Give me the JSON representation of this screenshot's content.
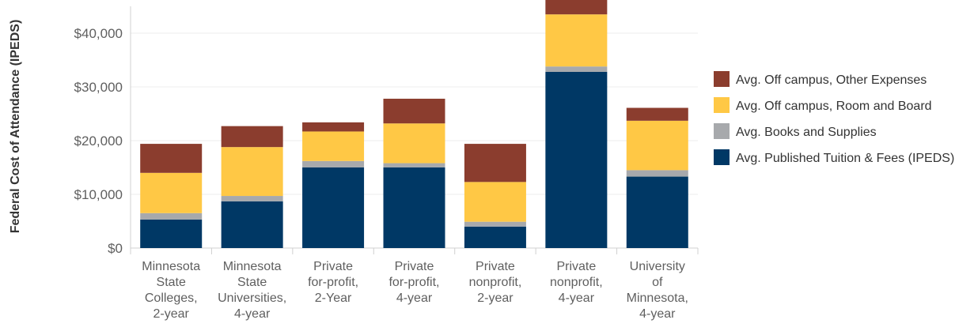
{
  "chart_data": {
    "type": "bar",
    "stacked": true,
    "title": "",
    "xlabel": "",
    "ylabel": "Federal Cost of Attendance (IPEDS)",
    "ylim": [
      0,
      45000
    ],
    "yticks": [
      0,
      10000,
      20000,
      30000,
      40000
    ],
    "ytick_labels": [
      "$0",
      "$10,000",
      "$20,000",
      "$30,000",
      "$40,000"
    ],
    "grid": true,
    "legend_position": "right",
    "categories": [
      [
        "Minnesota",
        "State",
        "Colleges,",
        "2-year"
      ],
      [
        "Minnesota",
        "State",
        "Universities,",
        "4-year"
      ],
      [
        "Private",
        "for-profit,",
        "2-Year"
      ],
      [
        "Private",
        "for-profit,",
        "4-year"
      ],
      [
        "Private",
        "nonprofit,",
        "2-year"
      ],
      [
        "Private",
        "nonprofit,",
        "4-year"
      ],
      [
        "University",
        "of",
        "Minnesota,",
        "4-year"
      ]
    ],
    "series": [
      {
        "name": "Avg. Published Tuition & Fees (IPEDS)",
        "color": "#003865",
        "values": [
          5300,
          8700,
          15000,
          15000,
          4000,
          32800,
          13300
        ]
      },
      {
        "name": "Avg. Books and Supplies",
        "color": "#a7a9ac",
        "values": [
          1200,
          1000,
          1200,
          800,
          900,
          1000,
          1200
        ]
      },
      {
        "name": "Avg. Off campus, Room and Board",
        "color": "#ffc845",
        "values": [
          7500,
          9100,
          5500,
          7400,
          7400,
          9700,
          9200
        ]
      },
      {
        "name": "Avg. Off campus, Other Expenses",
        "color": "#8b3d2e",
        "values": [
          5400,
          3900,
          1700,
          4600,
          7100,
          2900,
          2400
        ]
      }
    ],
    "legend_order": [
      3,
      2,
      1,
      0
    ]
  }
}
